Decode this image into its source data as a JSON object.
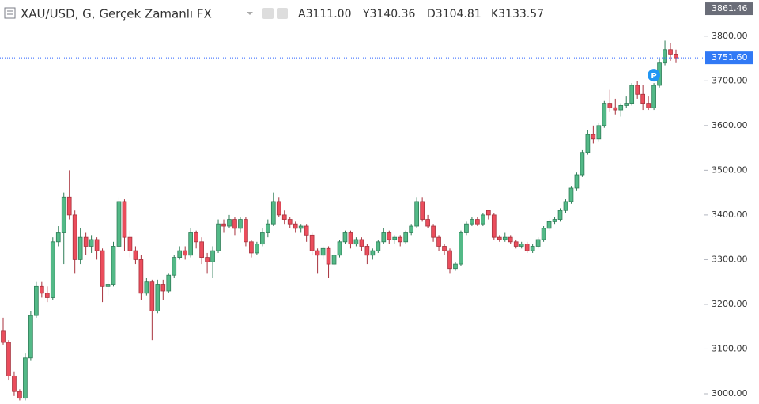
{
  "chart_data": {
    "type": "candlestick",
    "title": "XAU/USD, G, Gerçek Zamanlı FX",
    "legend_values": [
      "A3111.00",
      "Y3140.36",
      "D3104.81",
      "K3133.57"
    ],
    "badge": "P",
    "up_color": "#53b987",
    "down_color": "#eb4d5c",
    "ylim": [
      2977,
      3881
    ],
    "yticks": [
      {
        "value": 3000,
        "label": "3000.00"
      },
      {
        "value": 3100,
        "label": "3100.00"
      },
      {
        "value": 3200,
        "label": "3200.00"
      },
      {
        "value": 3300,
        "label": "3300.00"
      },
      {
        "value": 3400,
        "label": "3400.00"
      },
      {
        "value": 3500,
        "label": "3500.00"
      },
      {
        "value": 3600,
        "label": "3600.00"
      },
      {
        "value": 3700,
        "label": "3700.00"
      },
      {
        "value": 3800,
        "label": "3800.00"
      }
    ],
    "high_marker": 3861.46,
    "last_price": {
      "value": 3751.6,
      "label": "3751.60"
    },
    "candles": [
      [
        3140,
        3170,
        3110,
        3115
      ],
      [
        3115,
        3120,
        3030,
        3040
      ],
      [
        3040,
        3050,
        2995,
        3005
      ],
      [
        3005,
        3010,
        2985,
        2990
      ],
      [
        2990,
        3090,
        2985,
        3080
      ],
      [
        3080,
        3185,
        3075,
        3175
      ],
      [
        3175,
        3250,
        3170,
        3240
      ],
      [
        3240,
        3250,
        3215,
        3225
      ],
      [
        3225,
        3240,
        3205,
        3215
      ],
      [
        3215,
        3350,
        3210,
        3340
      ],
      [
        3340,
        3375,
        3330,
        3360
      ],
      [
        3360,
        3450,
        3290,
        3440
      ],
      [
        3440,
        3500,
        3390,
        3400
      ],
      [
        3400,
        3410,
        3270,
        3300
      ],
      [
        3300,
        3370,
        3290,
        3350
      ],
      [
        3350,
        3360,
        3310,
        3330
      ],
      [
        3330,
        3355,
        3315,
        3345
      ],
      [
        3345,
        3350,
        3300,
        3320
      ],
      [
        3320,
        3325,
        3205,
        3240
      ],
      [
        3240,
        3255,
        3220,
        3245
      ],
      [
        3245,
        3340,
        3240,
        3330
      ],
      [
        3330,
        3440,
        3325,
        3430
      ],
      [
        3430,
        3435,
        3320,
        3350
      ],
      [
        3350,
        3365,
        3305,
        3320
      ],
      [
        3320,
        3330,
        3290,
        3300
      ],
      [
        3300,
        3310,
        3210,
        3225
      ],
      [
        3225,
        3260,
        3220,
        3250
      ],
      [
        3250,
        3255,
        3120,
        3185
      ],
      [
        3185,
        3255,
        3180,
        3245
      ],
      [
        3245,
        3255,
        3210,
        3230
      ],
      [
        3230,
        3270,
        3225,
        3265
      ],
      [
        3265,
        3310,
        3260,
        3305
      ],
      [
        3305,
        3330,
        3300,
        3320
      ],
      [
        3320,
        3330,
        3300,
        3310
      ],
      [
        3310,
        3370,
        3305,
        3360
      ],
      [
        3360,
        3365,
        3325,
        3340
      ],
      [
        3340,
        3350,
        3290,
        3305
      ],
      [
        3305,
        3315,
        3270,
        3295
      ],
      [
        3295,
        3330,
        3260,
        3320
      ],
      [
        3320,
        3390,
        3315,
        3380
      ],
      [
        3380,
        3390,
        3360,
        3375
      ],
      [
        3375,
        3400,
        3370,
        3390
      ],
      [
        3390,
        3395,
        3355,
        3370
      ],
      [
        3370,
        3395,
        3360,
        3390
      ],
      [
        3390,
        3395,
        3330,
        3340
      ],
      [
        3340,
        3345,
        3305,
        3315
      ],
      [
        3315,
        3340,
        3310,
        3335
      ],
      [
        3335,
        3370,
        3330,
        3360
      ],
      [
        3360,
        3390,
        3350,
        3380
      ],
      [
        3380,
        3450,
        3375,
        3430
      ],
      [
        3430,
        3440,
        3395,
        3400
      ],
      [
        3400,
        3410,
        3380,
        3390
      ],
      [
        3390,
        3395,
        3370,
        3380
      ],
      [
        3380,
        3385,
        3360,
        3370
      ],
      [
        3370,
        3380,
        3360,
        3375
      ],
      [
        3375,
        3380,
        3340,
        3355
      ],
      [
        3355,
        3360,
        3310,
        3320
      ],
      [
        3320,
        3325,
        3270,
        3310
      ],
      [
        3310,
        3330,
        3300,
        3325
      ],
      [
        3325,
        3330,
        3260,
        3290
      ],
      [
        3290,
        3320,
        3285,
        3310
      ],
      [
        3310,
        3345,
        3305,
        3340
      ],
      [
        3340,
        3365,
        3335,
        3360
      ],
      [
        3360,
        3365,
        3325,
        3335
      ],
      [
        3335,
        3350,
        3330,
        3345
      ],
      [
        3345,
        3350,
        3320,
        3330
      ],
      [
        3330,
        3335,
        3290,
        3310
      ],
      [
        3310,
        3325,
        3300,
        3320
      ],
      [
        3320,
        3345,
        3315,
        3340
      ],
      [
        3340,
        3370,
        3335,
        3360
      ],
      [
        3360,
        3365,
        3335,
        3345
      ],
      [
        3345,
        3355,
        3335,
        3350
      ],
      [
        3350,
        3355,
        3330,
        3340
      ],
      [
        3340,
        3365,
        3335,
        3360
      ],
      [
        3360,
        3380,
        3355,
        3375
      ],
      [
        3375,
        3440,
        3370,
        3430
      ],
      [
        3430,
        3440,
        3385,
        3390
      ],
      [
        3390,
        3400,
        3370,
        3375
      ],
      [
        3375,
        3380,
        3340,
        3350
      ],
      [
        3350,
        3355,
        3320,
        3330
      ],
      [
        3330,
        3335,
        3310,
        3320
      ],
      [
        3320,
        3325,
        3270,
        3280
      ],
      [
        3280,
        3295,
        3275,
        3290
      ],
      [
        3290,
        3365,
        3285,
        3360
      ],
      [
        3360,
        3385,
        3355,
        3380
      ],
      [
        3380,
        3395,
        3375,
        3390
      ],
      [
        3390,
        3395,
        3375,
        3380
      ],
      [
        3380,
        3405,
        3375,
        3400
      ],
      [
        3410,
        3412,
        3390,
        3400
      ],
      [
        3400,
        3405,
        3345,
        3350
      ],
      [
        3350,
        3355,
        3340,
        3345
      ],
      [
        3345,
        3360,
        3340,
        3350
      ],
      [
        3350,
        3355,
        3335,
        3340
      ],
      [
        3340,
        3345,
        3325,
        3330
      ],
      [
        3330,
        3340,
        3325,
        3335
      ],
      [
        3335,
        3340,
        3315,
        3320
      ],
      [
        3320,
        3335,
        3315,
        3330
      ],
      [
        3330,
        3350,
        3325,
        3345
      ],
      [
        3345,
        3375,
        3340,
        3370
      ],
      [
        3370,
        3390,
        3365,
        3385
      ],
      [
        3385,
        3395,
        3380,
        3390
      ],
      [
        3390,
        3415,
        3385,
        3410
      ],
      [
        3410,
        3435,
        3405,
        3430
      ],
      [
        3430,
        3465,
        3425,
        3460
      ],
      [
        3460,
        3495,
        3455,
        3490
      ],
      [
        3490,
        3545,
        3485,
        3540
      ],
      [
        3540,
        3590,
        3535,
        3580
      ],
      [
        3580,
        3600,
        3560,
        3570
      ],
      [
        3570,
        3605,
        3565,
        3600
      ],
      [
        3600,
        3655,
        3595,
        3650
      ],
      [
        3650,
        3680,
        3630,
        3640
      ],
      [
        3640,
        3660,
        3625,
        3635
      ],
      [
        3635,
        3650,
        3620,
        3645
      ],
      [
        3645,
        3665,
        3640,
        3650
      ],
      [
        3650,
        3695,
        3645,
        3690
      ],
      [
        3690,
        3700,
        3660,
        3670
      ],
      [
        3670,
        3690,
        3635,
        3650
      ],
      [
        3650,
        3665,
        3635,
        3640
      ],
      [
        3640,
        3695,
        3635,
        3690
      ],
      [
        3690,
        3750,
        3685,
        3740
      ],
      [
        3740,
        3790,
        3735,
        3770
      ],
      [
        3770,
        3785,
        3745,
        3760
      ],
      [
        3760,
        3770,
        3740,
        3751.6
      ]
    ]
  }
}
